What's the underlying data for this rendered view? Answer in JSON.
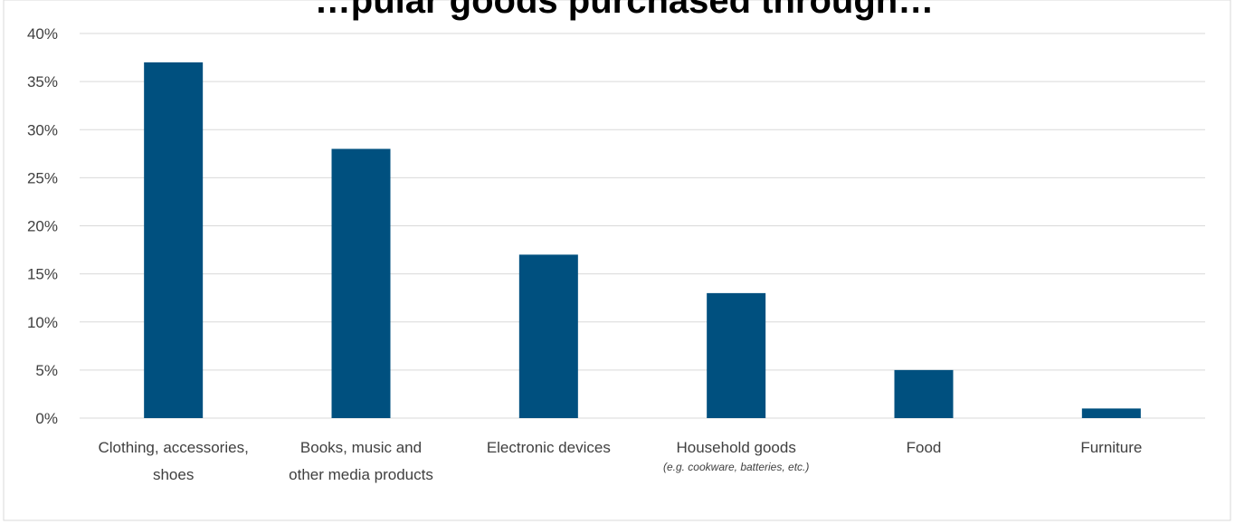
{
  "chart_data": {
    "type": "bar",
    "title_partial": "…pular goods purchased through…",
    "categories": [
      "Clothing, accessories, shoes",
      "Books, music and other media products",
      "Electronic devices",
      "Household goods",
      "Food",
      "Furniture"
    ],
    "category_lines": [
      [
        "Clothing, accessories,",
        "shoes"
      ],
      [
        "Books, music and",
        "other media products"
      ],
      [
        "Electronic devices"
      ],
      [
        "Household goods"
      ],
      [
        "Food"
      ],
      [
        "Furniture"
      ]
    ],
    "category_notes": [
      "",
      "",
      "",
      "(e.g. cookware, batteries, etc.)",
      "",
      ""
    ],
    "values": [
      37,
      28,
      17,
      13,
      5,
      1
    ],
    "ylim": [
      0,
      40
    ],
    "yticks": [
      0,
      5,
      10,
      15,
      20,
      25,
      30,
      35,
      40
    ],
    "ytick_labels": [
      "0%",
      "5%",
      "10%",
      "15%",
      "20%",
      "25%",
      "30%",
      "35%",
      "40%"
    ],
    "bar_color": "#00507f",
    "grid": true,
    "gridline_color": "#d9d9d9",
    "legend": "none"
  }
}
